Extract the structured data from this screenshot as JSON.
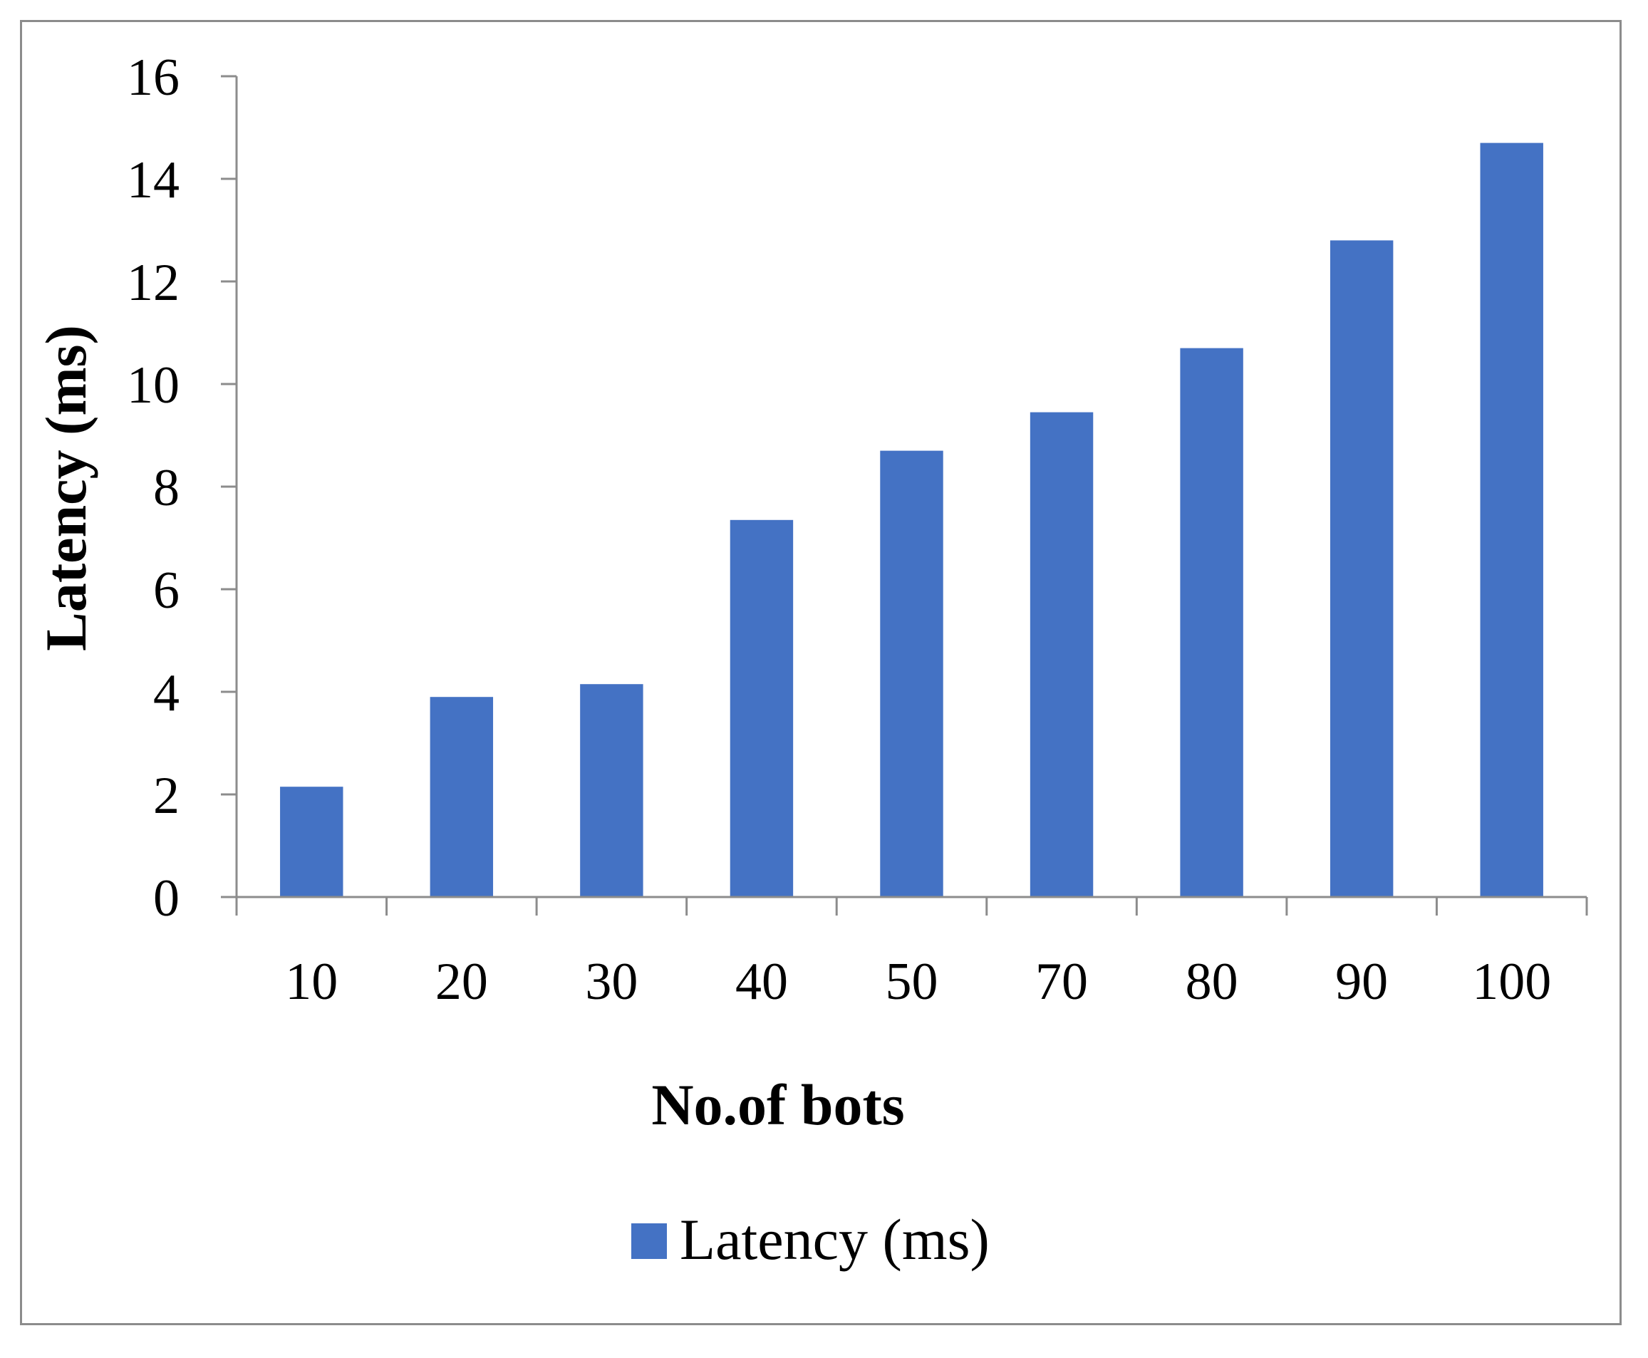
{
  "chart_data": {
    "type": "bar",
    "categories": [
      "10",
      "20",
      "30",
      "40",
      "50",
      "70",
      "80",
      "90",
      "100"
    ],
    "series": [
      {
        "name": "Latency (ms)",
        "values": [
          2.15,
          3.9,
          4.15,
          7.35,
          8.7,
          9.45,
          10.7,
          12.8,
          14.7
        ],
        "color": "#4472c4"
      }
    ],
    "title": "",
    "xlabel": "No.of bots",
    "ylabel": "Latency (ms)",
    "ylim": [
      0,
      16
    ],
    "yticks": [
      "0",
      "2",
      "4",
      "6",
      "8",
      "10",
      "12",
      "14",
      "16"
    ],
    "grid": false,
    "legend_position": "bottom",
    "axis_color": "#8c8c8c"
  }
}
